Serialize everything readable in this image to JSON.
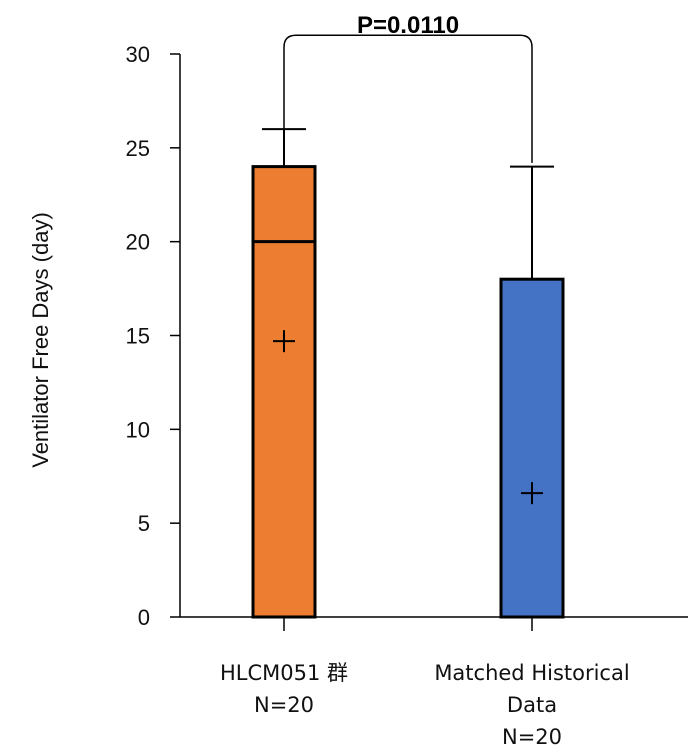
{
  "chart_data": {
    "type": "bar",
    "title": "",
    "ylabel": "Ventilator Free Days (day)",
    "xlabel": "",
    "ylim": [
      0,
      30
    ],
    "yticks": [
      0,
      5,
      10,
      15,
      20,
      25,
      30
    ],
    "grid": false,
    "categories": [
      {
        "lines": [
          "HLCM051 群",
          "N=20"
        ],
        "color": "#ED7D31",
        "bar_top": 24,
        "median": 20,
        "mean": 14.7,
        "error_top": 26
      },
      {
        "lines": [
          "Matched Historical",
          "Data",
          "N=20"
        ],
        "color": "#4472C4",
        "bar_top": 18,
        "median": null,
        "mean": 6.6,
        "error_top": 24
      }
    ],
    "significance": {
      "label": "P=0.0110",
      "between": [
        0,
        1
      ],
      "from_y": [
        25,
        25
      ],
      "bracket_y": 31
    }
  }
}
